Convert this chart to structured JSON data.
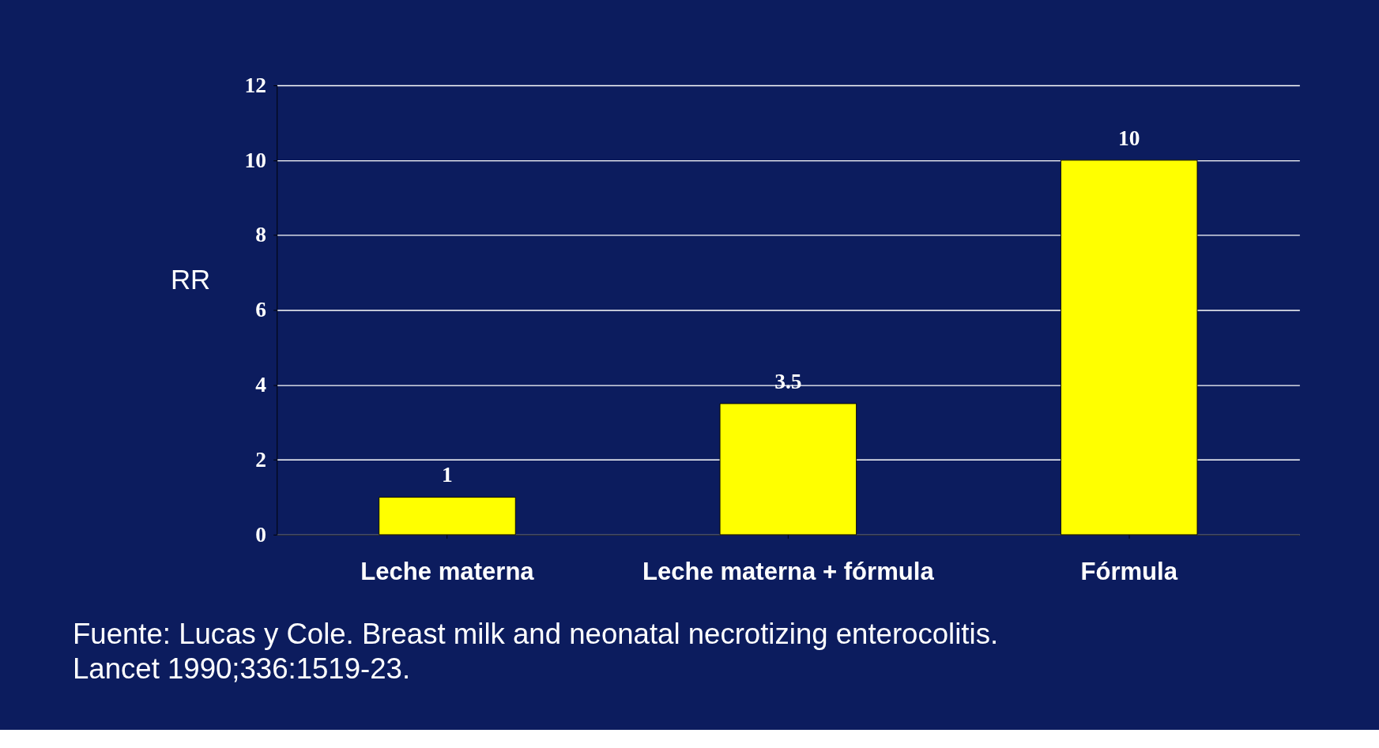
{
  "chart_data": {
    "type": "bar",
    "categories": [
      "Leche materna",
      "Leche materna + fórmula",
      "Fórmula"
    ],
    "values": [
      1,
      3.5,
      10
    ],
    "color": "#ffff00",
    "ylabel": "RR",
    "ylim": [
      0,
      12
    ],
    "yticks": [
      0,
      2,
      4,
      6,
      8,
      10,
      12
    ],
    "grid": "y",
    "data_labels": true,
    "annotations": [
      "Fuente:  Lucas y Cole.  Breast milk and neonatal necrotizing enterocolitis. Lancet 1990;336:1519-23."
    ]
  }
}
